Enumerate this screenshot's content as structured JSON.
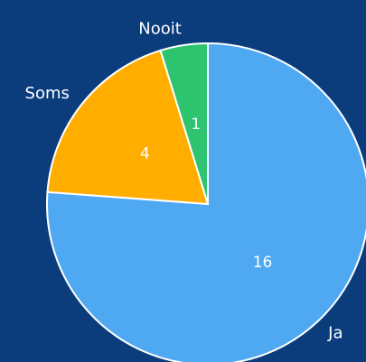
{
  "chart_data": {
    "type": "pie",
    "categories": [
      "Ja",
      "Soms",
      "Nooit"
    ],
    "values": [
      16,
      4,
      1
    ],
    "colors": [
      "#4fa8f2",
      "#ffae00",
      "#2ec46f"
    ]
  }
}
